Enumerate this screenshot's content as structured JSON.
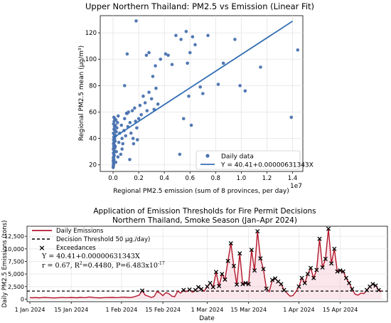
{
  "chart_data": [
    {
      "type": "scatter",
      "title": "Upper Northern Thailand: PM2.5 vs Emission (Linear Fit)",
      "xlabel": "Regional PM2.5 emission (sum of 8 provinces, per day)",
      "ylabel": "Regional PM2.5 mean (µg/m³)",
      "x_multiplier_label": "1e7",
      "xlim": [
        -1000000,
        14800000
      ],
      "ylim": [
        15,
        133
      ],
      "x_ticks": [
        0,
        2000000,
        4000000,
        6000000,
        8000000,
        10000000,
        12000000,
        14000000
      ],
      "x_tick_labels": [
        "0.0",
        "0.2",
        "0.4",
        "0.6",
        "0.8",
        "1.0",
        "1.2",
        "1.4"
      ],
      "y_ticks": [
        20,
        40,
        60,
        80,
        100,
        120
      ],
      "y_tick_labels": [
        "20",
        "40",
        "60",
        "80",
        "100",
        "120"
      ],
      "grid": true,
      "legend_position": "lower-right",
      "series": [
        {
          "name": "Daily data",
          "color": "#4a72b0",
          "points": [
            [
              10000,
              18
            ],
            [
              20000,
              19
            ],
            [
              40000,
              20
            ],
            [
              30000,
              21
            ],
            [
              50000,
              22
            ],
            [
              10000,
              23
            ],
            [
              70000,
              24
            ],
            [
              20000,
              25
            ],
            [
              40000,
              26
            ],
            [
              90000,
              27
            ],
            [
              60000,
              28
            ],
            [
              30000,
              29
            ],
            [
              110000,
              30
            ],
            [
              80000,
              31
            ],
            [
              20000,
              32
            ],
            [
              140000,
              33
            ],
            [
              50000,
              34
            ],
            [
              100000,
              35
            ],
            [
              30000,
              36
            ],
            [
              70000,
              37
            ],
            [
              160000,
              38
            ],
            [
              40000,
              39
            ],
            [
              120000,
              40
            ],
            [
              60000,
              41
            ],
            [
              200000,
              42
            ],
            [
              90000,
              43
            ],
            [
              30000,
              44
            ],
            [
              250000,
              45
            ],
            [
              150000,
              46
            ],
            [
              70000,
              47
            ],
            [
              300000,
              48
            ],
            [
              110000,
              49
            ],
            [
              180000,
              50
            ],
            [
              40000,
              51
            ],
            [
              350000,
              52
            ],
            [
              80000,
              53
            ],
            [
              220000,
              54
            ],
            [
              130000,
              55
            ],
            [
              60000,
              56
            ],
            [
              170000,
              34
            ],
            [
              260000,
              30
            ],
            [
              380000,
              26
            ],
            [
              210000,
              22
            ],
            [
              450000,
              37
            ],
            [
              520000,
              44
            ],
            [
              600000,
              28
            ],
            [
              700000,
              40
            ],
            [
              650000,
              50
            ],
            [
              760000,
              36
            ],
            [
              850000,
              46
            ],
            [
              900000,
              55
            ],
            [
              980000,
              42
            ],
            [
              1050000,
              59
            ],
            [
              1150000,
              49
            ],
            [
              1200000,
              60
            ],
            [
              1320000,
              52
            ],
            [
              1400000,
              44
            ],
            [
              1500000,
              61
            ],
            [
              1560000,
              40
            ],
            [
              1600000,
              36
            ],
            [
              1680000,
              63
            ],
            [
              1750000,
              53
            ],
            [
              1850000,
              48
            ],
            [
              1900000,
              39
            ],
            [
              2000000,
              55
            ],
            [
              2100000,
              65
            ],
            [
              2200000,
              58
            ],
            [
              2350000,
              72
            ],
            [
              2500000,
              67
            ],
            [
              2650000,
              61
            ],
            [
              2800000,
              75
            ],
            [
              3000000,
              70
            ],
            [
              3200000,
              62
            ],
            [
              3350000,
              78
            ],
            [
              3500000,
              66
            ],
            [
              400000,
              57
            ],
            [
              900000,
              80
            ],
            [
              1100000,
              59
            ],
            [
              2600000,
              103
            ],
            [
              2800000,
              105
            ],
            [
              3100000,
              87
            ],
            [
              3300000,
              95
            ],
            [
              3700000,
              100
            ],
            [
              4100000,
              104
            ],
            [
              4300000,
              103
            ],
            [
              4600000,
              96
            ],
            [
              4900000,
              118
            ],
            [
              5300000,
              115
            ],
            [
              5700000,
              121
            ],
            [
              5800000,
              97
            ],
            [
              6000000,
              105
            ],
            [
              6200000,
              117
            ],
            [
              6400000,
              111
            ],
            [
              5500000,
              55
            ],
            [
              6100000,
              50
            ],
            [
              6800000,
              79
            ],
            [
              5900000,
              72
            ],
            [
              7000000,
              74
            ],
            [
              7400000,
              118
            ],
            [
              8200000,
              81
            ],
            [
              8600000,
              97
            ],
            [
              9500000,
              115
            ],
            [
              9900000,
              80
            ],
            [
              10300000,
              76
            ],
            [
              11500000,
              94
            ],
            [
              13900000,
              56
            ],
            [
              14400000,
              107
            ],
            [
              1100000,
              104
            ],
            [
              1800000,
              129
            ],
            [
              700000,
              32
            ],
            [
              1300000,
              24
            ],
            [
              5200000,
              28
            ]
          ]
        }
      ],
      "fit_line": {
        "name": "Y = 40.41+0.00000631343X",
        "intercept": 40.41,
        "slope": 6.31343e-06,
        "x_range": [
          0,
          14000000
        ],
        "color": "#3470b5"
      }
    },
    {
      "type": "line",
      "title": "Application of Emission Thresholds for Fire Permit Decisions",
      "subtitle": "Northern Thailand, Smoke Season (Jan–Apr 2024)",
      "xlabel": "Date",
      "ylabel": "Daily PM2.5 Emissions (tons)",
      "ylim": [
        -500,
        14500
      ],
      "y_ticks": [
        0,
        2500,
        5000,
        7500,
        10000,
        12500
      ],
      "y_tick_labels": [
        "0",
        "2,500",
        "5,000",
        "7,500",
        "10,000",
        "12,500"
      ],
      "x_tick_labels": [
        "1 Jan 2024",
        "15 Jan 2024",
        "1 Feb 2024",
        "15 Feb 2024",
        "1 Mar 2024",
        "15 Mar 2024",
        "1 Apr 2024",
        "15 Apr 2024"
      ],
      "x_tick_days": [
        0,
        14,
        31,
        45,
        60,
        74,
        91,
        105
      ],
      "x_days_total": 120,
      "grid": true,
      "legend_position": "upper-left",
      "threshold": 1600,
      "series_values": [
        300,
        280,
        320,
        260,
        300,
        350,
        310,
        280,
        250,
        270,
        300,
        340,
        290,
        310,
        330,
        300,
        280,
        350,
        320,
        310,
        420,
        380,
        300,
        280,
        260,
        300,
        320,
        330,
        350,
        300,
        320,
        380,
        400,
        350,
        330,
        420,
        600,
        800,
        1700,
        800,
        600,
        350,
        500,
        1500,
        1200,
        700,
        1300,
        1100,
        600,
        500,
        1600,
        1200,
        1800,
        1500,
        1900,
        1400,
        1800,
        2400,
        2000,
        1600,
        2500,
        3200,
        2400,
        5400,
        2600,
        5000,
        3900,
        7600,
        11100,
        6600,
        2900,
        9100,
        3000,
        3200,
        3000,
        9800,
        5700,
        13500,
        8100,
        6000,
        2100,
        1500,
        3800,
        4100,
        3500,
        3000,
        1800,
        1200,
        600,
        700,
        1500,
        2500,
        4200,
        3200,
        5000,
        6200,
        4200,
        5800,
        12000,
        6300,
        8000,
        14000,
        7100,
        10000,
        5500,
        5700,
        5500,
        4200,
        3200,
        2000,
        1000,
        800,
        1200,
        1100,
        1800,
        2500,
        3000,
        2700,
        1800,
        1600
      ],
      "exceedance_threshold": 1600,
      "series": [
        {
          "name": "Daily Emissions",
          "color": "#b2182b"
        },
        {
          "name": "Decision Threshold 50 µg./day)",
          "color": "#000000"
        },
        {
          "name": "Exceedances",
          "color": "#000000"
        }
      ],
      "annotations": {
        "equation": "Y = 40.41+0.00000631343X",
        "stats_prefix": "r = 0.67, R",
        "stats_r2": "=0.4480, P=6.483x10",
        "stats_exp": "-17"
      }
    }
  ]
}
